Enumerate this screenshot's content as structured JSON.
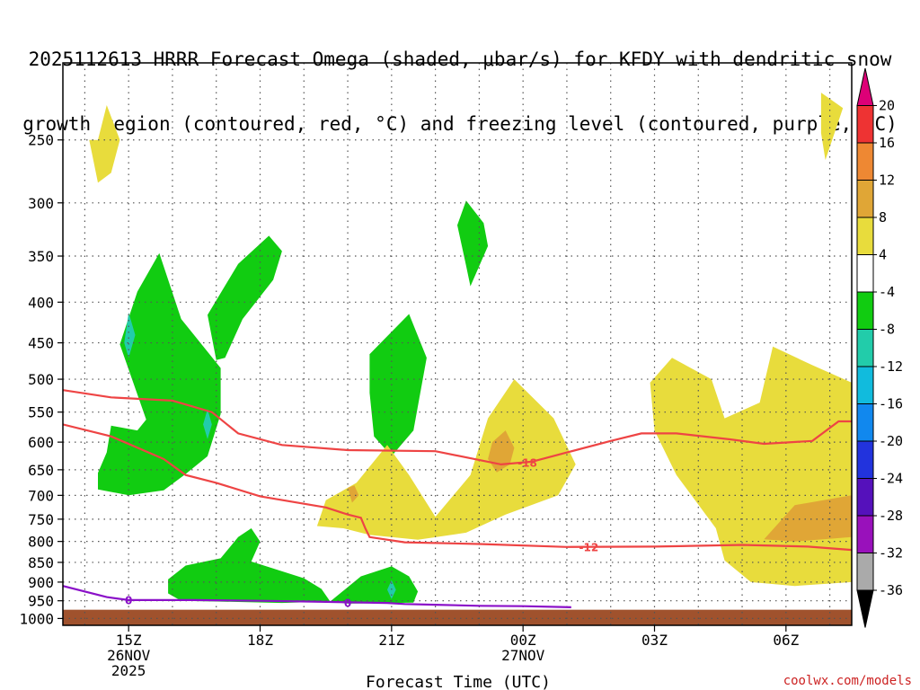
{
  "title_line1": "2025112613 HRRR Forecast Omega (shaded, μbar/s) for KFDY with dendritic snow",
  "title_line2": "growth region (contoured, red, °C) and freezing level (contoured, purple, °C)",
  "credit": "coolwx.com/models",
  "colors": {
    "grid": "#555555",
    "ground": "#a0522d",
    "dgz_contour": "#ee4444",
    "freezing_contour": "#8a10c8",
    "green": "#11cc11",
    "yellow": "#e8dc3c",
    "orange": "#e0a636",
    "teal": "#22ccaa"
  },
  "chart_data": {
    "type": "time-height cross section (filled contour)",
    "xlabel": "Forecast Time (UTC)",
    "ylabel": "",
    "x_range_hours_from_run": [
      0.5,
      18.5
    ],
    "y_axis": "pressure (mb), inverted log-pressure",
    "y_range_mb": [
      1020,
      200
    ],
    "x_ticks": [
      {
        "hour": 2,
        "lines": [
          "15Z",
          "26NOV",
          "2025"
        ]
      },
      {
        "hour": 5,
        "lines": [
          "18Z"
        ]
      },
      {
        "hour": 8,
        "lines": [
          "21Z"
        ]
      },
      {
        "hour": 11,
        "lines": [
          "00Z",
          "27NOV"
        ]
      },
      {
        "hour": 14,
        "lines": [
          "03Z"
        ]
      },
      {
        "hour": 17,
        "lines": [
          "06Z"
        ]
      }
    ],
    "y_ticks": [
      250,
      300,
      350,
      400,
      450,
      500,
      550,
      600,
      650,
      700,
      750,
      800,
      850,
      900,
      950,
      1000
    ],
    "grid": "dotted",
    "ground_top_mb": 975,
    "colorbar": {
      "units": "μbar/s",
      "bands": [
        {
          "color": "#dd0077",
          "label": ""
        },
        {
          "color": "#ee3333",
          "label": "20"
        },
        {
          "color": "#ee8833",
          "label": "16"
        },
        {
          "color": "#e0a636",
          "label": "12"
        },
        {
          "color": "#e8dc3c",
          "label": "8"
        },
        {
          "color": "#ffffff",
          "label": "4"
        },
        {
          "color": "#11cc11",
          "label": "-4"
        },
        {
          "color": "#22ccaa",
          "label": "-8"
        },
        {
          "color": "#11bbdd",
          "label": "-12"
        },
        {
          "color": "#1188ee",
          "label": "-16"
        },
        {
          "color": "#2233dd",
          "label": "-20"
        },
        {
          "color": "#5511bb",
          "label": "-24"
        },
        {
          "color": "#9911bb",
          "label": "-28"
        },
        {
          "color": "#aaaaaa",
          "label": "-32"
        },
        {
          "color": "#000000",
          "label": "-36"
        }
      ]
    },
    "contours": {
      "dgz_minus18": {
        "label": "-18",
        "points": [
          [
            0.5,
            516
          ],
          [
            1.6,
            527
          ],
          [
            3.0,
            532
          ],
          [
            3.9,
            550
          ],
          [
            4.5,
            585
          ],
          [
            5.5,
            605
          ],
          [
            7.0,
            614
          ],
          [
            9.0,
            616
          ],
          [
            10.5,
            640
          ],
          [
            11.2,
            635
          ],
          [
            13.0,
            598
          ],
          [
            13.7,
            585
          ],
          [
            14.5,
            585
          ],
          [
            15.7,
            595
          ],
          [
            16.5,
            603
          ],
          [
            17.6,
            598
          ],
          [
            18.2,
            565
          ],
          [
            18.5,
            565
          ]
        ]
      },
      "dgz_minus12": {
        "label": "-12",
        "points": [
          [
            0.5,
            570
          ],
          [
            1.6,
            590
          ],
          [
            2.8,
            630
          ],
          [
            3.3,
            660
          ],
          [
            4.0,
            675
          ],
          [
            5.0,
            702
          ],
          [
            6.5,
            725
          ],
          [
            7.0,
            740
          ],
          [
            7.3,
            747
          ],
          [
            7.4,
            770
          ],
          [
            7.5,
            790
          ],
          [
            8.3,
            802
          ],
          [
            10.0,
            806
          ],
          [
            12.0,
            813
          ],
          [
            14.0,
            812
          ],
          [
            16.0,
            808
          ],
          [
            17.5,
            812
          ],
          [
            18.5,
            820
          ]
        ]
      },
      "freezing_0": {
        "label": "0",
        "points": [
          [
            0.5,
            910
          ],
          [
            1.5,
            940
          ],
          [
            2.0,
            948
          ],
          [
            3.5,
            948
          ],
          [
            5.0,
            950
          ],
          [
            6.5,
            953
          ],
          [
            7.9,
            956
          ],
          [
            8.3,
            959
          ],
          [
            9.0,
            961
          ],
          [
            10.0,
            964
          ],
          [
            11.0,
            965
          ],
          [
            12.1,
            968
          ]
        ]
      }
    },
    "shaded_regions": [
      {
        "omega": "4 to 8",
        "points": [
          [
            1.3,
            250
          ],
          [
            1.5,
            226
          ],
          [
            1.8,
            250
          ],
          [
            1.6,
            275
          ],
          [
            1.3,
            283
          ],
          [
            1.1,
            250
          ]
        ]
      },
      {
        "omega": "4 to 8",
        "points": [
          [
            17.8,
            218
          ],
          [
            18.3,
            228
          ],
          [
            17.9,
            265
          ],
          [
            17.8,
            245
          ]
        ]
      },
      {
        "omega": "-8 to -4",
        "points": [
          [
            9.7,
            298
          ],
          [
            10.1,
            318
          ],
          [
            10.2,
            340
          ],
          [
            9.8,
            382
          ],
          [
            9.7,
            360
          ],
          [
            9.5,
            320
          ]
        ]
      },
      {
        "omega": "-8 to -4",
        "points": [
          [
            1.8,
            452
          ],
          [
            2.2,
            388
          ],
          [
            2.7,
            347
          ],
          [
            3.2,
            420
          ],
          [
            4.1,
            484
          ],
          [
            4.1,
            553
          ],
          [
            3.8,
            625
          ],
          [
            3.3,
            658
          ],
          [
            2.8,
            690
          ],
          [
            2.0,
            700
          ],
          [
            1.3,
            688
          ],
          [
            1.3,
            656
          ],
          [
            1.5,
            618
          ],
          [
            1.6,
            572
          ],
          [
            2.2,
            580
          ],
          [
            2.4,
            562
          ]
        ]
      },
      {
        "omega": "-8 to -4",
        "points": [
          [
            4.0,
            473
          ],
          [
            3.8,
            415
          ],
          [
            4.5,
            358
          ],
          [
            5.2,
            330
          ],
          [
            5.5,
            345
          ],
          [
            5.3,
            375
          ],
          [
            4.6,
            420
          ],
          [
            4.2,
            470
          ]
        ]
      },
      {
        "omega": "-8 to -4",
        "points": [
          [
            7.5,
            465
          ],
          [
            8.4,
            414
          ],
          [
            8.8,
            470
          ],
          [
            8.5,
            580
          ],
          [
            8.0,
            625
          ],
          [
            7.6,
            590
          ],
          [
            7.5,
            520
          ]
        ]
      },
      {
        "omega": "-8 to -4",
        "points": [
          [
            2.9,
            893
          ],
          [
            3.3,
            858
          ],
          [
            4.1,
            840
          ],
          [
            4.5,
            790
          ],
          [
            4.8,
            770
          ],
          [
            5.0,
            800
          ],
          [
            4.8,
            848
          ],
          [
            6.0,
            890
          ],
          [
            6.4,
            918
          ],
          [
            6.6,
            952
          ],
          [
            5.5,
            956
          ],
          [
            4.0,
            952
          ],
          [
            3.2,
            950
          ],
          [
            2.9,
            930
          ]
        ]
      },
      {
        "omega": "-8 to -4",
        "points": [
          [
            6.6,
            952
          ],
          [
            7.3,
            885
          ],
          [
            8.0,
            860
          ],
          [
            8.4,
            885
          ],
          [
            8.6,
            925
          ],
          [
            8.5,
            955
          ],
          [
            7.0,
            958
          ]
        ]
      },
      {
        "omega": "4 to 8",
        "points": [
          [
            6.3,
            765
          ],
          [
            6.5,
            710
          ],
          [
            7.2,
            675
          ],
          [
            7.9,
            605
          ],
          [
            8.4,
            660
          ],
          [
            9.0,
            745
          ],
          [
            9.8,
            660
          ],
          [
            10.2,
            560
          ],
          [
            10.8,
            500
          ],
          [
            11.7,
            560
          ],
          [
            12.2,
            640
          ],
          [
            11.8,
            700
          ],
          [
            10.6,
            740
          ],
          [
            9.7,
            780
          ],
          [
            8.6,
            796
          ],
          [
            7.5,
            785
          ],
          [
            6.9,
            770
          ]
        ]
      },
      {
        "omega": "4 to 8",
        "points": [
          [
            13.9,
            505
          ],
          [
            14.4,
            470
          ],
          [
            15.3,
            500
          ],
          [
            15.6,
            560
          ],
          [
            16.4,
            535
          ],
          [
            16.7,
            455
          ],
          [
            17.6,
            480
          ],
          [
            18.5,
            505
          ],
          [
            18.5,
            900
          ],
          [
            17.2,
            910
          ],
          [
            16.2,
            900
          ],
          [
            15.6,
            845
          ],
          [
            15.4,
            770
          ],
          [
            14.5,
            660
          ],
          [
            14.0,
            580
          ]
        ]
      },
      {
        "omega": "8 to 12",
        "points": [
          [
            10.3,
            600
          ],
          [
            10.6,
            580
          ],
          [
            10.8,
            610
          ],
          [
            10.7,
            640
          ],
          [
            10.4,
            655
          ],
          [
            10.2,
            630
          ]
        ]
      },
      {
        "omega": "8 to 12",
        "points": [
          [
            16.5,
            795
          ],
          [
            17.2,
            720
          ],
          [
            18.5,
            700
          ],
          [
            18.5,
            790
          ],
          [
            17.2,
            800
          ]
        ]
      },
      {
        "omega": "8 to 12",
        "points": [
          [
            7.0,
            685
          ],
          [
            7.15,
            680
          ],
          [
            7.25,
            700
          ],
          [
            7.1,
            715
          ]
        ]
      },
      {
        "omega": "-12 to -8",
        "points": [
          [
            1.9,
            450
          ],
          [
            2.0,
            412
          ],
          [
            2.15,
            440
          ],
          [
            2.0,
            470
          ]
        ]
      },
      {
        "omega": "-12 to -8",
        "points": [
          [
            3.7,
            570
          ],
          [
            3.8,
            545
          ],
          [
            3.9,
            570
          ],
          [
            3.8,
            595
          ]
        ]
      },
      {
        "omega": "-12 to -8",
        "points": [
          [
            7.9,
            920
          ],
          [
            8.0,
            895
          ],
          [
            8.1,
            920
          ],
          [
            8.0,
            945
          ]
        ]
      }
    ]
  }
}
